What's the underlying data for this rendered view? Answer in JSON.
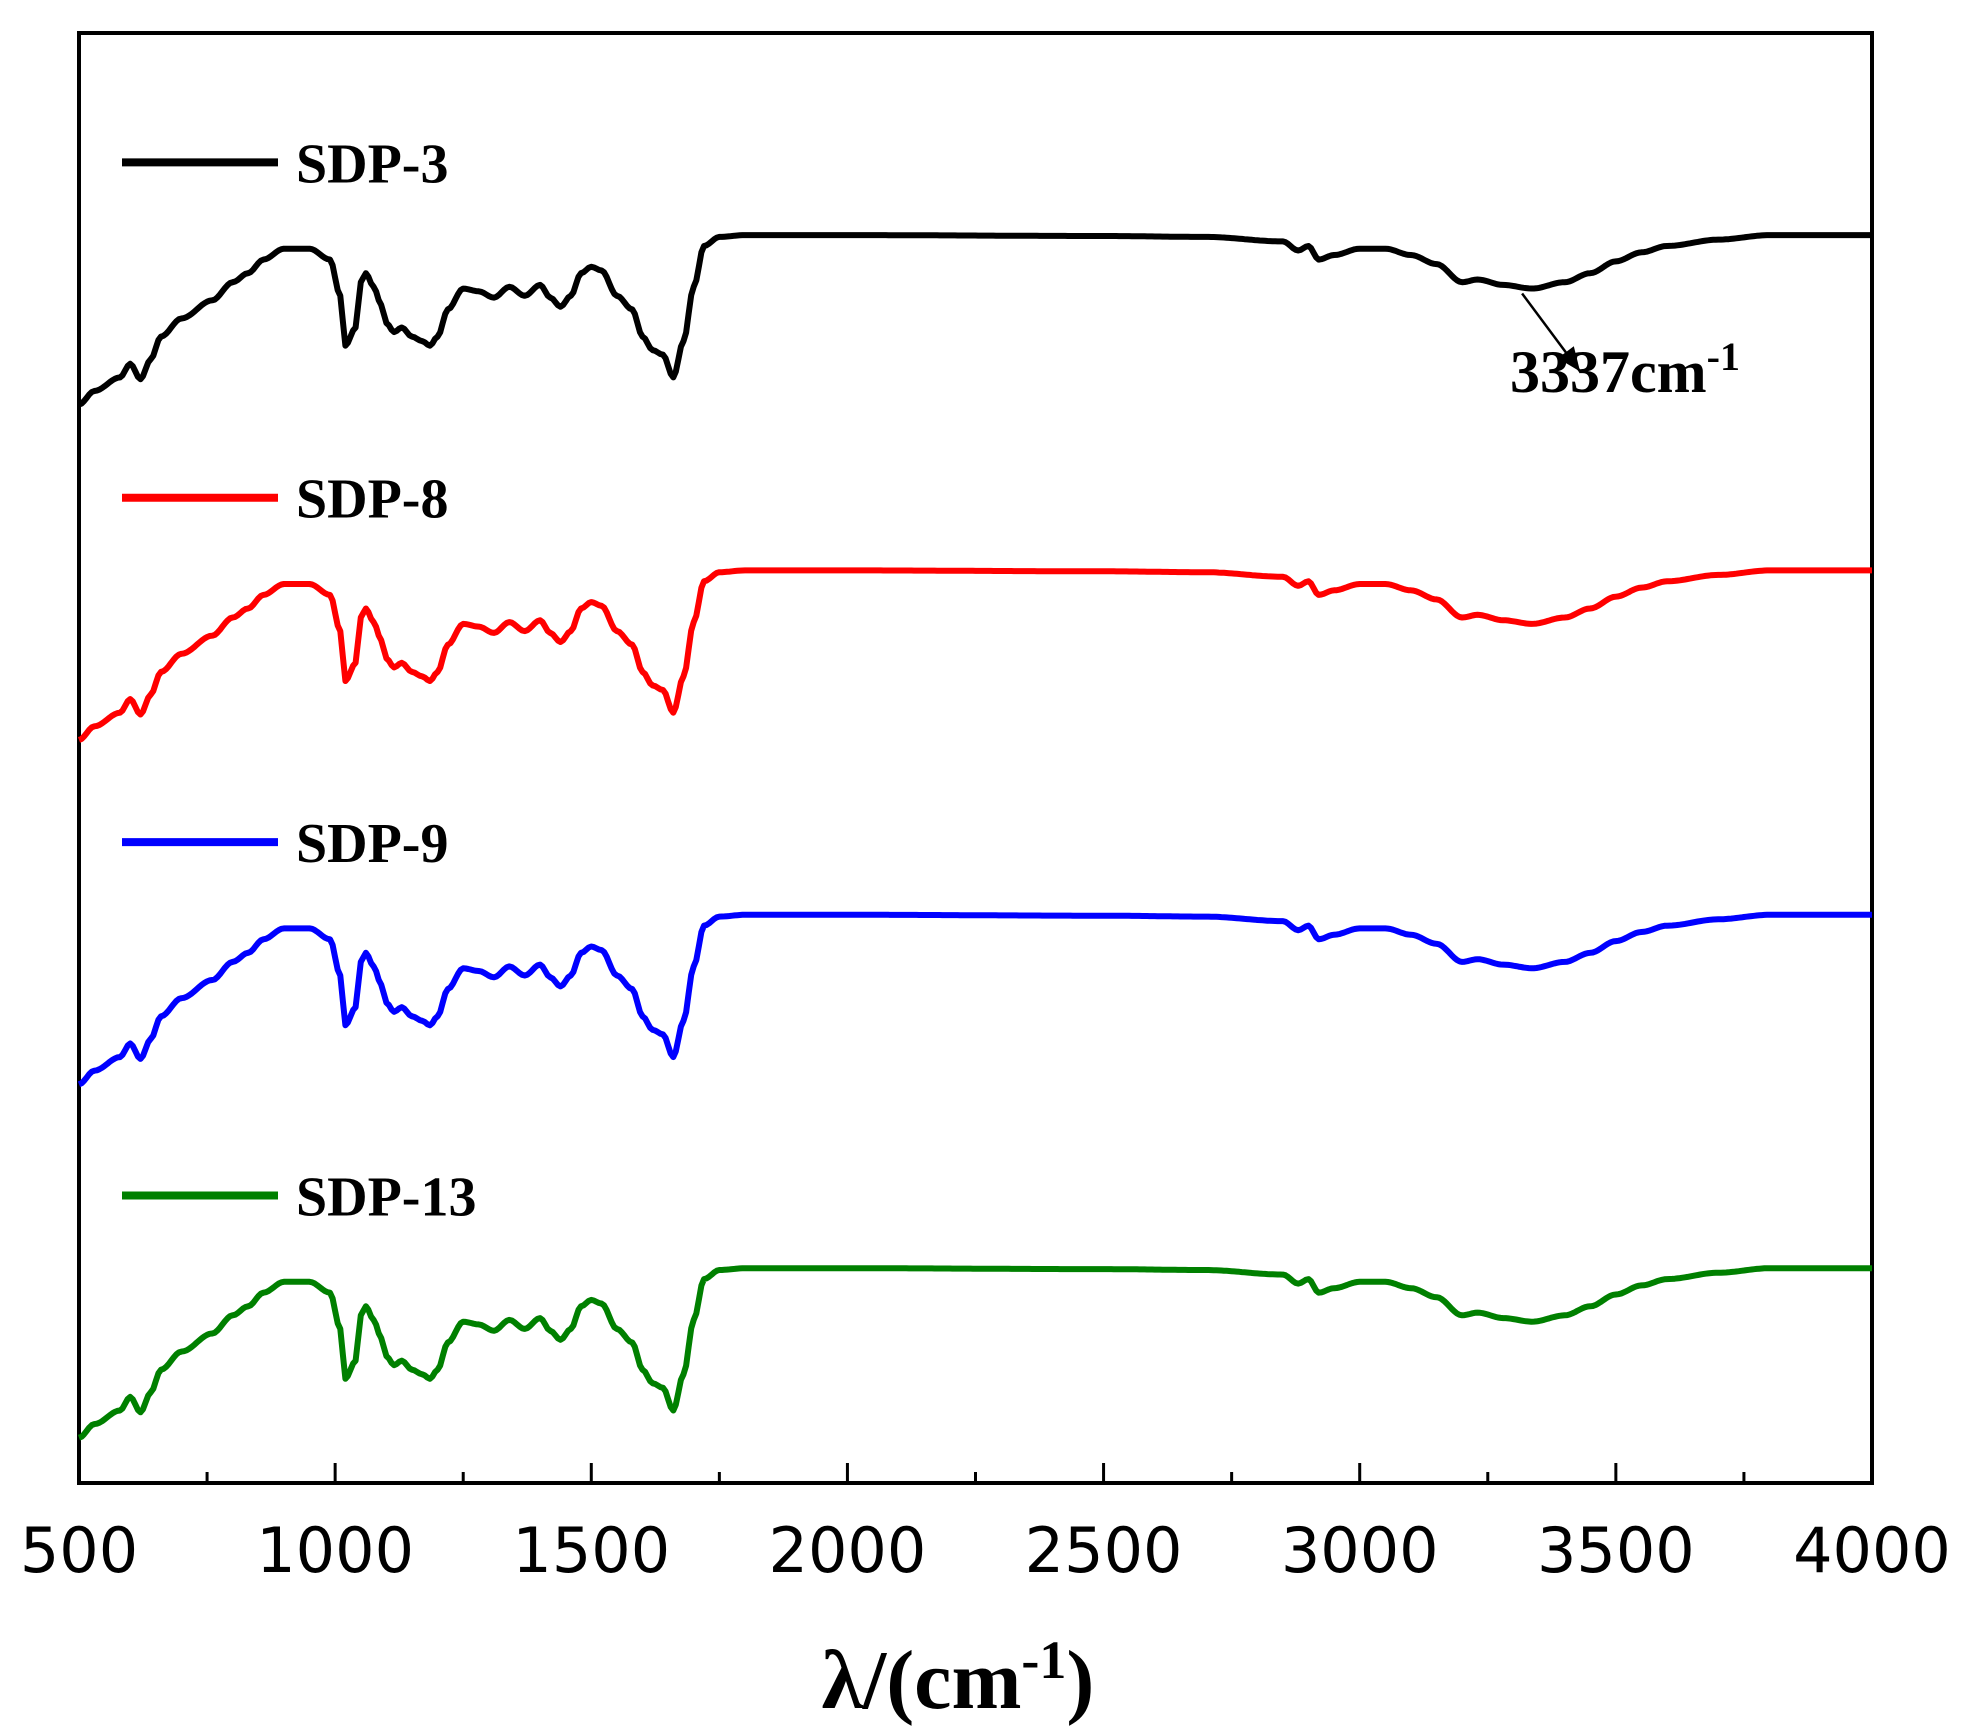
{
  "chart_data": {
    "type": "line",
    "title": "",
    "xlabel": "λ/(cm",
    "xlabel_sup": "-1",
    "xlabel_suffix": ")",
    "ylabel": "",
    "xlim": [
      500,
      4000
    ],
    "ylim": [
      -0.5,
      15.5
    ],
    "x_ticks": [
      500,
      1000,
      1500,
      2000,
      2500,
      3000,
      3500,
      4000
    ],
    "x_tick_labels": [
      "500",
      "1000",
      "1500",
      "2000",
      "2500",
      "3000",
      "3500",
      "4000"
    ],
    "grid": false,
    "legend": "left, beside each curve",
    "series": [
      {
        "name": "SDP-3",
        "color": "#000000",
        "offset": 11.4
      },
      {
        "name": "SDP-8",
        "color": "#ff0000",
        "offset": 7.7
      },
      {
        "name": "SDP-9",
        "color": "#0000ff",
        "offset": 3.9
      },
      {
        "name": "SDP-13",
        "color": "#008000",
        "offset": 0.0
      }
    ],
    "base_profile": {
      "x": [
        500,
        530,
        580,
        600,
        620,
        640,
        660,
        700,
        760,
        800,
        830,
        860,
        900,
        950,
        990,
        1010,
        1020,
        1040,
        1050,
        1060,
        1075,
        1090,
        1100,
        1115,
        1130,
        1150,
        1170,
        1185,
        1200,
        1220,
        1250,
        1280,
        1310,
        1340,
        1370,
        1400,
        1420,
        1440,
        1460,
        1480,
        1500,
        1520,
        1550,
        1580,
        1600,
        1620,
        1640,
        1660,
        1680,
        1700,
        1720,
        1750,
        1800,
        2000,
        2500,
        2700,
        2850,
        2880,
        2900,
        2920,
        2950,
        3000,
        3050,
        3100,
        3150,
        3200,
        3230,
        3280,
        3337,
        3400,
        3450,
        3500,
        3550,
        3600,
        3700,
        3800,
        3900,
        4000
      ],
      "y": [
        0,
        0.15,
        0.3,
        0.45,
        0.28,
        0.5,
        0.75,
        0.95,
        1.15,
        1.35,
        1.45,
        1.6,
        1.72,
        1.72,
        1.6,
        1.2,
        0.65,
        0.85,
        1.35,
        1.45,
        1.3,
        1.1,
        0.9,
        0.8,
        0.85,
        0.75,
        0.7,
        0.65,
        0.75,
        1.05,
        1.28,
        1.25,
        1.18,
        1.3,
        1.2,
        1.32,
        1.18,
        1.08,
        1.2,
        1.45,
        1.52,
        1.48,
        1.2,
        1.05,
        0.75,
        0.6,
        0.55,
        0.3,
        0.7,
        1.3,
        1.75,
        1.85,
        1.87,
        1.87,
        1.86,
        1.85,
        1.8,
        1.7,
        1.75,
        1.6,
        1.65,
        1.72,
        1.72,
        1.65,
        1.55,
        1.35,
        1.38,
        1.32,
        1.28,
        1.35,
        1.45,
        1.58,
        1.68,
        1.75,
        1.82,
        1.87,
        1.87,
        1.87
      ]
    },
    "annotations": [
      {
        "text": "3337cm",
        "sup": "-1",
        "x": 3337,
        "series": "SDP-3"
      }
    ]
  }
}
